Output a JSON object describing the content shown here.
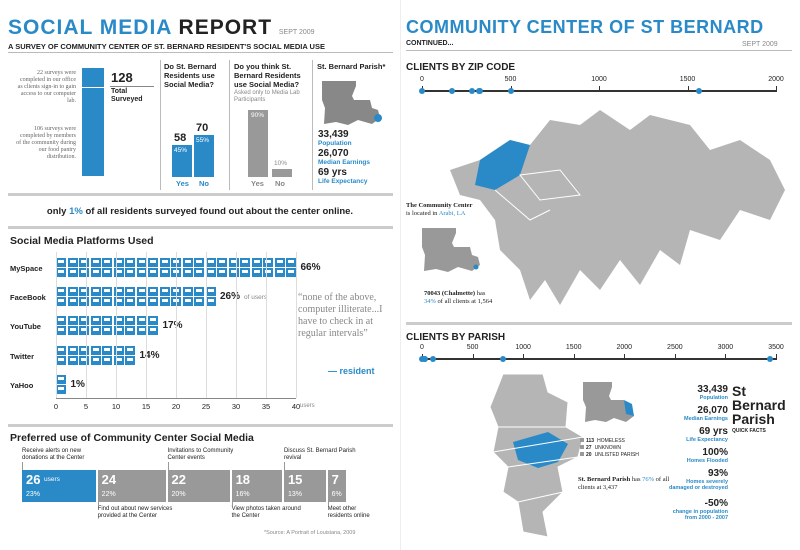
{
  "left": {
    "title": {
      "a": "SOCIAL MEDIA",
      "b": "REPORT",
      "date": "SEPT 2009"
    },
    "subtitle": "A SURVEY OF COMMUNITY CENTER OF ST. BERNARD RESIDENT'S SOCIAL MEDIA USE",
    "surveys": {
      "note1": "22 surveys were completed in our office as clients sign-in to gain access to our computer lab.",
      "note2": "106 surveys were completed by members of the community during our food pantry distribution.",
      "total": "128",
      "total_label1": "Total",
      "total_label2": "Surveyed"
    },
    "q1": {
      "title": "Do St. Bernard Residents use Social Media?",
      "yes_n": "58",
      "no_n": "70",
      "yes_p": "45%",
      "no_p": "55%",
      "yes": "Yes",
      "no": "No",
      "yes_frac": 0.45,
      "no_frac": 0.55
    },
    "q2": {
      "title": "Do you think St. Bernard Residents use Social Media?",
      "note": "Asked only to Media Lab Participants",
      "yes_p": "90%",
      "no_p": "10%",
      "yes": "Yes",
      "no": "No",
      "yes_frac": 0.9,
      "no_frac": 0.1
    },
    "parish": {
      "title": "St. Bernard Parish*",
      "pop": "33,439",
      "pop_l": "Population",
      "earn": "26,070",
      "earn_l": "Median Earnings",
      "life": "69 yrs",
      "life_l": "Life Expectancy"
    },
    "online": {
      "pre": "only ",
      "pct": "1%",
      "post": " of all residents surveyed found out about the center online."
    },
    "platforms_title": "Social Media Platforms Used",
    "quote": "“none of the above, computer illiterate...I have to check in at regular intervals”",
    "quote_by": "— resident",
    "of_users": "of users",
    "users_axis": "users",
    "preferred_title": "Preferred use of Community Center Social Media",
    "source": "*Source: A Portrait of Louisiana, 2009"
  },
  "chart_data": [
    {
      "type": "bar",
      "title": "Social Media Platforms Used",
      "categories": [
        "MySpace",
        "FaceBook",
        "YouTube",
        "Twitter",
        "YaHoo"
      ],
      "values": [
        66,
        26,
        17,
        14,
        1
      ],
      "value_labels": [
        "66%",
        "26%",
        "17%",
        "14%",
        "1%"
      ],
      "xlabel": "users",
      "xlim": [
        0,
        40
      ],
      "xticks": [
        "0",
        "5",
        "10",
        "15",
        "20",
        "25",
        "30",
        "35",
        "40"
      ]
    },
    {
      "type": "bar",
      "title": "Preferred use of Community Center Social Media",
      "categories": [
        "Receive alerts on new donations at the Center",
        "Find out about new services provided at the Center",
        "Invitations to Community Center events",
        "View photos taken around the Center",
        "Discuss St. Bernard Parish revival",
        "Meet other residents online"
      ],
      "values": [
        26,
        24,
        22,
        18,
        15,
        7
      ],
      "value_labels": [
        "26",
        "24",
        "22",
        "18",
        "15",
        "7"
      ],
      "pct_labels": [
        "23%",
        "22%",
        "20%",
        "16%",
        "13%",
        "6%"
      ],
      "first_unit": "users"
    }
  ],
  "right": {
    "title": "COMMUNITY CENTER OF ST BERNARD",
    "continued": "CONTINUED...",
    "date": "SEPT 2009",
    "zip": {
      "title": "CLIENTS BY ZIP CODE",
      "ticks": [
        "0",
        "500",
        "1000",
        "1500",
        "2000"
      ],
      "points": [
        0,
        170,
        280,
        320,
        330,
        500,
        1564
      ],
      "center_bold": "The Community Center",
      "center_rest": "is located in ",
      "center_place": "Arabi, LA",
      "stat_bold": "70043 (Chalmette)",
      "stat_mid": " has ",
      "stat_pct": "34%",
      "stat_end": " of all clients at 1,564"
    },
    "parish": {
      "title": "CLIENTS BY PARISH",
      "ticks": [
        "0",
        "500",
        "1000",
        "1500",
        "2000",
        "2500",
        "3000",
        "3500"
      ],
      "points": [
        0,
        20,
        27,
        113,
        800,
        3437
      ],
      "legend": [
        {
          "n": "113",
          "l": "HOMELESS"
        },
        {
          "n": "27",
          "l": "UNKNOWN"
        },
        {
          "n": "20",
          "l": "UNLISTED PARISH"
        }
      ],
      "stat_bold": "St. Bernard Parish",
      "stat_mid": " has ",
      "stat_pct": "76%",
      "stat_end": " of all clients at 3,437"
    },
    "facts": {
      "name1": "St",
      "name2": "Bernard",
      "name3": "Parish",
      "sub": "QUICK FACTS",
      "items": [
        {
          "v": "33,439",
          "l": "Population"
        },
        {
          "v": "26,070",
          "l": "Median Earnings"
        },
        {
          "v": "69 yrs",
          "l": "Life Expectancy"
        },
        {
          "v": "100%",
          "l": "Homes Flooded"
        },
        {
          "v": "93%",
          "l": "Homes severely damaged or destroyed"
        },
        {
          "v": "-50%",
          "l": "change in population from 2000 - 2007"
        }
      ]
    }
  }
}
